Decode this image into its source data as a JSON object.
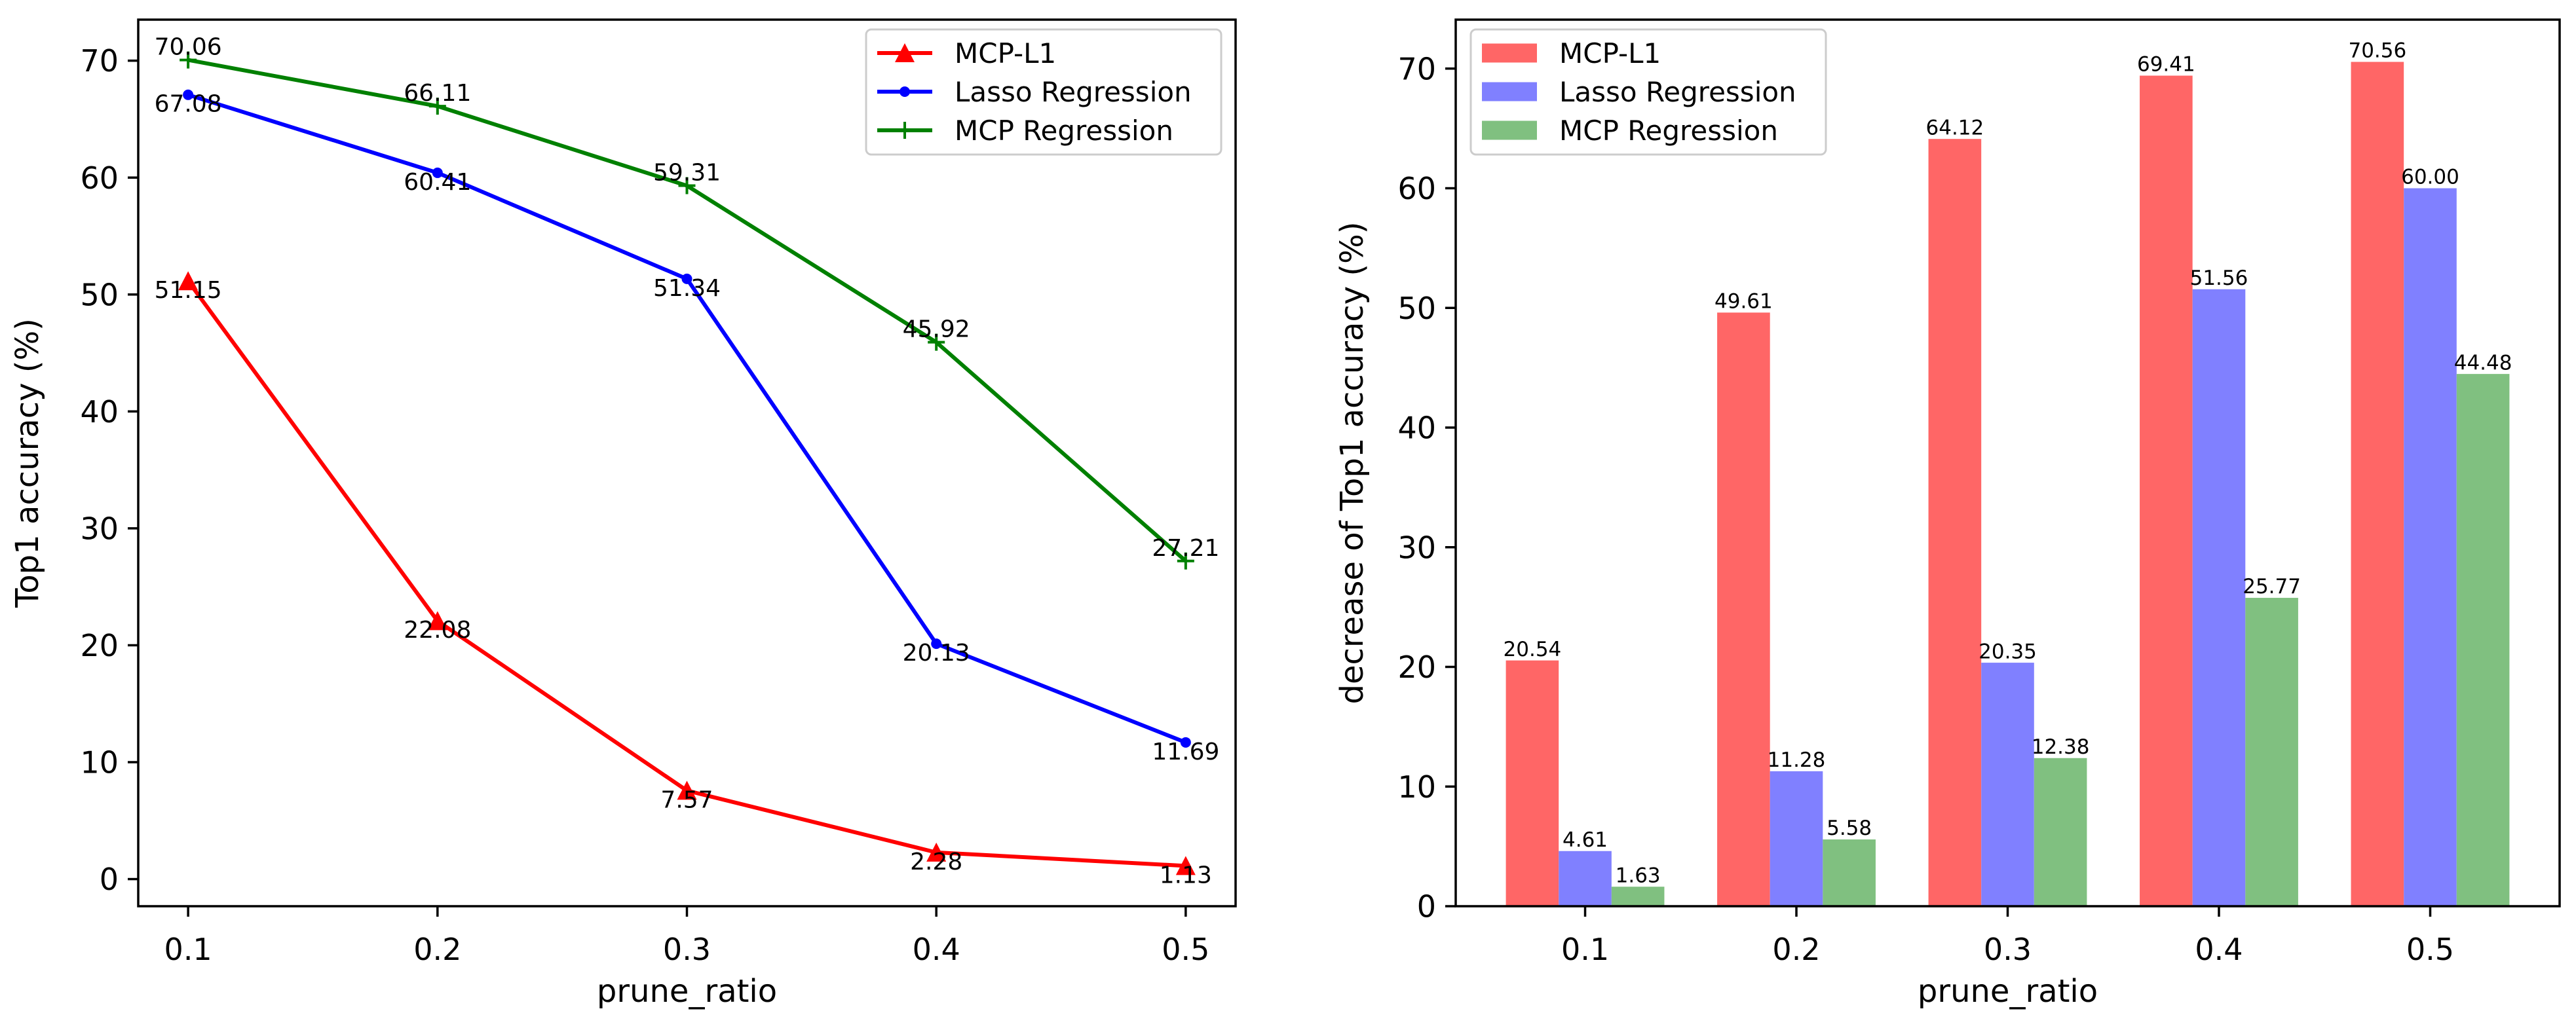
{
  "chart_data": [
    {
      "type": "line",
      "x": [
        0.1,
        0.2,
        0.3,
        0.4,
        0.5
      ],
      "xlim": [
        0.08,
        0.52
      ],
      "ylim": [
        -2.32,
        73.51
      ],
      "y_ticks": [
        0,
        10,
        20,
        30,
        40,
        50,
        60,
        70
      ],
      "xlabel": "prune_ratio",
      "ylabel": "Top1 accuracy (%)",
      "legend": "upper right",
      "grid": false,
      "series": [
        {
          "name": "MCP-L1",
          "color": "#ff0000",
          "values": [
            51.15,
            22.08,
            7.57,
            2.28,
            1.13
          ],
          "labels": [
            "51.15",
            "22.08",
            "7.57",
            "2.28",
            "1.13"
          ]
        },
        {
          "name": "Lasso Regression",
          "color": "#0000ff",
          "values": [
            67.08,
            60.41,
            51.34,
            20.13,
            11.69
          ],
          "labels": [
            "67.08",
            "60.41",
            "51.34",
            "20.13",
            "11.69"
          ]
        },
        {
          "name": "MCP Regression",
          "color": "#008000",
          "values": [
            70.06,
            66.11,
            59.31,
            45.92,
            27.21
          ],
          "labels": [
            "70.06",
            "66.11",
            "59.31",
            "45.92",
            "27.21"
          ]
        }
      ]
    },
    {
      "type": "bar",
      "categories": [
        "0.1",
        "0.2",
        "0.3",
        "0.4",
        "0.5"
      ],
      "ylim": [
        0,
        74.09
      ],
      "y_ticks": [
        0,
        10,
        20,
        30,
        40,
        50,
        60,
        70
      ],
      "xlabel": "prune_ratio",
      "ylabel": "decrease of Top1 accuracy (%)",
      "legend": "upper left",
      "grid": false,
      "series": [
        {
          "name": "MCP-L1",
          "color": "#ff6666",
          "values": [
            20.54,
            49.61,
            64.12,
            69.41,
            70.56
          ],
          "labels": [
            "20.54",
            "49.61",
            "64.12",
            "69.41",
            "70.56"
          ]
        },
        {
          "name": "Lasso Regression",
          "color": "#8080ff",
          "values": [
            4.61,
            11.28,
            20.35,
            51.56,
            60.0
          ],
          "labels": [
            "4.61",
            "11.28",
            "20.35",
            "51.56",
            "60.00"
          ]
        },
        {
          "name": "MCP Regression",
          "color": "#80c080",
          "values": [
            1.63,
            5.58,
            12.38,
            25.77,
            44.48
          ],
          "labels": [
            "1.63",
            "5.58",
            "12.38",
            "25.77",
            "44.48"
          ]
        }
      ]
    }
  ]
}
